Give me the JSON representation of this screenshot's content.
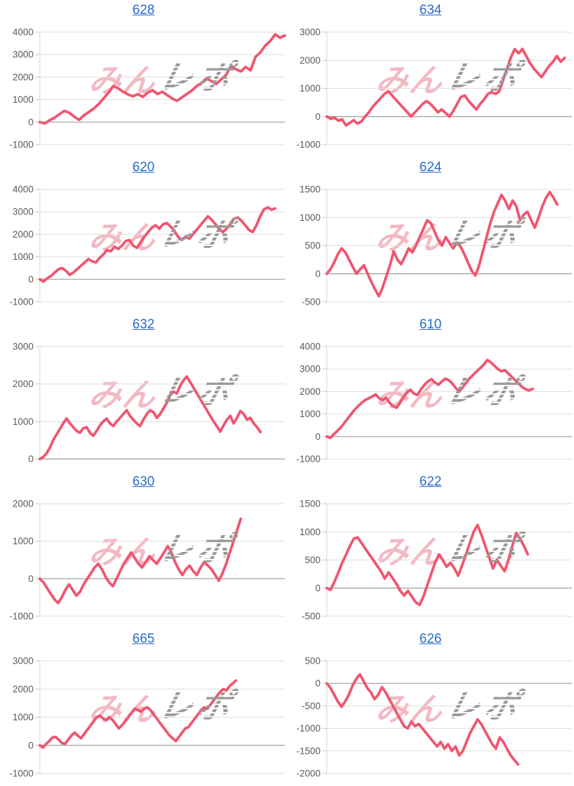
{
  "page": {
    "background": "#ffffff"
  },
  "watermark": {
    "pink_text": "みん",
    "gray_text": "レポ",
    "pink_color": "rgba(233,128,146,0.55)",
    "gray_color": "rgba(150,150,150,0.9)"
  },
  "colors": {
    "line": "#ef5670",
    "gridline": "#dedede",
    "zero_line": "#ababab",
    "axis_line": "#d6d6d6",
    "tick_mark": "#c3c3c3",
    "tick_label": "#595959",
    "link": "#2a6bc5"
  },
  "chart_data": [
    {
      "machine": "628",
      "type": "line",
      "ylim": [
        -1000,
        4000
      ],
      "yticks": [
        4000,
        3000,
        2000,
        1000,
        0,
        -1000
      ],
      "end_frac": 1.0,
      "values": [
        0,
        -60,
        80,
        200,
        350,
        500,
        420,
        250,
        100,
        300,
        450,
        600,
        800,
        1050,
        1300,
        1600,
        1500,
        1350,
        1230,
        1150,
        1250,
        1120,
        1300,
        1420,
        1250,
        1350,
        1200,
        1050,
        950,
        1100,
        1250,
        1400,
        1600,
        1750,
        1950,
        1820,
        1700,
        1900,
        2100,
        2500,
        2350,
        2250,
        2450,
        2300,
        2900,
        3100,
        3400,
        3600,
        3900,
        3750,
        3850
      ]
    },
    {
      "machine": "634",
      "type": "line",
      "ylim": [
        -1000,
        3000
      ],
      "yticks": [
        3000,
        2000,
        1000,
        0,
        -1000
      ],
      "end_frac": 0.97,
      "values": [
        0,
        -80,
        -40,
        -150,
        -100,
        -320,
        -230,
        -130,
        -250,
        -180,
        0,
        150,
        350,
        500,
        650,
        800,
        900,
        750,
        600,
        450,
        300,
        150,
        0,
        150,
        300,
        450,
        550,
        450,
        300,
        150,
        250,
        120,
        0,
        200,
        450,
        700,
        750,
        550,
        400,
        250,
        450,
        600,
        800,
        870,
        800,
        900,
        1300,
        1700,
        2100,
        2400,
        2250,
        2400,
        2150,
        1900,
        1700,
        1550,
        1400,
        1600,
        1800,
        1950,
        2150,
        1950,
        2080
      ]
    },
    {
      "machine": "620",
      "type": "line",
      "ylim": [
        -1000,
        4000
      ],
      "yticks": [
        4000,
        3000,
        2000,
        1000,
        0,
        -1000
      ],
      "end_frac": 0.96,
      "values": [
        0,
        -100,
        50,
        150,
        300,
        450,
        500,
        380,
        200,
        300,
        450,
        600,
        750,
        900,
        800,
        750,
        950,
        1100,
        1300,
        1250,
        1450,
        1350,
        1500,
        1700,
        1750,
        1500,
        1400,
        1650,
        1900,
        2100,
        2300,
        2400,
        2250,
        2450,
        2500,
        2350,
        2150,
        1900,
        1750,
        1900,
        1800,
        2000,
        2200,
        2400,
        2600,
        2800,
        2650,
        2450,
        2250,
        2100,
        2250,
        2450,
        2700,
        2750,
        2600,
        2400,
        2200,
        2100,
        2400,
        2800,
        3100,
        3200,
        3100,
        3150
      ]
    },
    {
      "machine": "624",
      "type": "line",
      "ylim": [
        -500,
        1500
      ],
      "yticks": [
        1500,
        1000,
        500,
        0,
        -500
      ],
      "end_frac": 0.94,
      "values": [
        0,
        80,
        200,
        350,
        450,
        380,
        250,
        120,
        0,
        80,
        150,
        0,
        -150,
        -280,
        -400,
        -250,
        -50,
        150,
        400,
        250,
        170,
        300,
        450,
        380,
        500,
        650,
        800,
        950,
        900,
        750,
        600,
        500,
        650,
        550,
        450,
        550,
        480,
        350,
        200,
        50,
        -30,
        150,
        400,
        650,
        900,
        1100,
        1250,
        1400,
        1300,
        1150,
        1300,
        1200,
        950,
        1050,
        1100,
        950,
        820,
        1000,
        1200,
        1350,
        1450,
        1350,
        1230
      ]
    },
    {
      "machine": "632",
      "type": "line",
      "ylim": [
        0,
        3000
      ],
      "yticks": [
        3000,
        2000,
        1000,
        0
      ],
      "end_frac": 0.9,
      "values": [
        0,
        50,
        150,
        300,
        500,
        650,
        800,
        950,
        1080,
        950,
        850,
        750,
        700,
        820,
        850,
        700,
        620,
        750,
        900,
        1000,
        1080,
        950,
        880,
        1000,
        1100,
        1200,
        1300,
        1150,
        1050,
        950,
        880,
        1050,
        1200,
        1300,
        1250,
        1100,
        1200,
        1350,
        1500,
        1700,
        1800,
        1750,
        1950,
        2100,
        2200,
        2050,
        1900,
        1750,
        1600,
        1450,
        1300,
        1150,
        1000,
        870,
        730,
        900,
        1050,
        1150,
        950,
        1100,
        1280,
        1200,
        1050,
        1100,
        950,
        850,
        720
      ]
    },
    {
      "machine": "610",
      "type": "line",
      "ylim": [
        -1000,
        4000
      ],
      "yticks": [
        4000,
        3000,
        2000,
        1000,
        0,
        -1000
      ],
      "end_frac": 0.84,
      "values": [
        0,
        -60,
        100,
        250,
        400,
        600,
        800,
        1000,
        1200,
        1350,
        1500,
        1620,
        1700,
        1780,
        1870,
        1700,
        1620,
        1720,
        1500,
        1350,
        1280,
        1500,
        1750,
        1950,
        2080,
        1900,
        1850,
        2100,
        2300,
        2450,
        2550,
        2400,
        2300,
        2450,
        2570,
        2500,
        2350,
        2150,
        2000,
        2200,
        2400,
        2600,
        2750,
        2900,
        3050,
        3200,
        3400,
        3300,
        3150,
        3000,
        2900,
        2950,
        2800,
        2650,
        2500,
        2350,
        2200,
        2100,
        2050,
        2120
      ]
    },
    {
      "machine": "630",
      "type": "line",
      "ylim": [
        -1000,
        2000
      ],
      "yticks": [
        2000,
        1000,
        0,
        -1000
      ],
      "end_frac": 0.82,
      "values": [
        0,
        -100,
        -250,
        -400,
        -550,
        -650,
        -500,
        -300,
        -150,
        -300,
        -450,
        -350,
        -150,
        0,
        150,
        300,
        400,
        250,
        50,
        -100,
        -200,
        0,
        200,
        400,
        550,
        700,
        550,
        400,
        300,
        450,
        600,
        500,
        400,
        550,
        700,
        870,
        700,
        450,
        250,
        100,
        250,
        350,
        200,
        100,
        300,
        450,
        350,
        250,
        100,
        -50,
        150,
        400,
        700,
        1000,
        1300,
        1600
      ]
    },
    {
      "machine": "622",
      "type": "line",
      "ylim": [
        -500,
        1500
      ],
      "yticks": [
        1500,
        1000,
        500,
        0,
        -500
      ],
      "end_frac": 0.82,
      "values": [
        0,
        -30,
        120,
        280,
        450,
        600,
        750,
        880,
        900,
        800,
        700,
        600,
        500,
        400,
        300,
        170,
        280,
        180,
        80,
        -50,
        -130,
        -50,
        -150,
        -250,
        -300,
        -150,
        50,
        250,
        450,
        600,
        500,
        380,
        450,
        350,
        220,
        400,
        600,
        800,
        1000,
        1120,
        950,
        750,
        550,
        350,
        500,
        400,
        300,
        500,
        750,
        980,
        880,
        750,
        600
      ]
    },
    {
      "machine": "665",
      "type": "line",
      "ylim": [
        -1000,
        3000
      ],
      "yticks": [
        3000,
        2000,
        1000,
        0,
        -1000
      ],
      "end_frac": 0.8,
      "values": [
        0,
        -80,
        50,
        150,
        280,
        300,
        200,
        80,
        50,
        200,
        350,
        450,
        350,
        250,
        400,
        550,
        700,
        850,
        1000,
        1050,
        950,
        900,
        1000,
        900,
        750,
        600,
        720,
        850,
        1000,
        1150,
        1300,
        1250,
        1200,
        1300,
        1350,
        1250,
        1100,
        950,
        800,
        650,
        500,
        350,
        250,
        150,
        300,
        450,
        600,
        650,
        800,
        950,
        1100,
        1250,
        1350,
        1300,
        1450,
        1600,
        1750,
        1900,
        2000,
        1950,
        2100,
        2200,
        2300
      ]
    },
    {
      "machine": "626",
      "type": "line",
      "ylim": [
        -2000,
        500
      ],
      "yticks": [
        500,
        0,
        -500,
        -1000,
        -1500,
        -2000
      ],
      "end_frac": 0.78,
      "values": [
        0,
        -100,
        -250,
        -400,
        -520,
        -400,
        -250,
        -50,
        100,
        200,
        50,
        -100,
        -200,
        -350,
        -250,
        -80,
        -200,
        -350,
        -500,
        -650,
        -800,
        -950,
        -1000,
        -850,
        -950,
        -900,
        -1000,
        -1100,
        -1200,
        -1300,
        -1400,
        -1300,
        -1450,
        -1350,
        -1500,
        -1400,
        -1600,
        -1500,
        -1300,
        -1100,
        -950,
        -800,
        -900,
        -1050,
        -1200,
        -1350,
        -1450,
        -1200,
        -1300,
        -1450,
        -1600,
        -1700,
        -1800
      ]
    }
  ]
}
